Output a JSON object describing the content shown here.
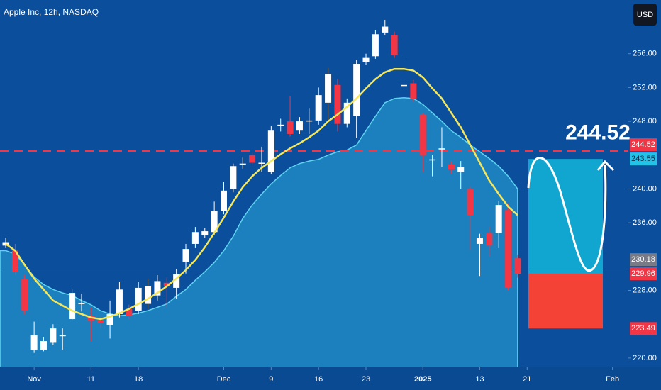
{
  "chart_data": {
    "type": "candlestick",
    "title": "Apple Inc, 12h, NASDAQ",
    "currency": "USD",
    "xlim": [
      -0.6,
      65.6
    ],
    "xticks": [
      {
        "value": 3,
        "label": "Nov"
      },
      {
        "value": 9,
        "label": "11"
      },
      {
        "value": 14,
        "label": "18"
      },
      {
        "value": 23,
        "label": "Dec"
      },
      {
        "value": 28,
        "label": "9"
      },
      {
        "value": 33,
        "label": "16"
      },
      {
        "value": 38,
        "label": "23"
      },
      {
        "value": 44,
        "label": "2025"
      },
      {
        "value": 50,
        "label": "13"
      },
      {
        "value": 55,
        "label": "21"
      },
      {
        "value": 64,
        "label": "Feb"
      }
    ],
    "ylim": [
      218.9,
      262.35
    ],
    "yticks": [
      {
        "value": 220,
        "label": "220.00"
      },
      {
        "value": 228,
        "label": "228.00"
      },
      {
        "value": 236,
        "label": "236.00"
      },
      {
        "value": 240,
        "label": "240.00"
      },
      {
        "value": 248,
        "label": "248.00"
      },
      {
        "value": 252,
        "label": "252.00"
      },
      {
        "value": 256,
        "label": "256.00"
      }
    ],
    "up_color": "#ffffff",
    "down_color": "#f23645",
    "open": [
      233.3,
      232.7,
      229.3,
      221,
      221,
      221.8,
      222.7,
      224.6,
      226.5,
      225,
      224.5,
      223.9,
      225.2,
      225.8,
      225.6,
      226.4,
      227.4,
      228.9,
      228.3,
      231.4,
      233.5,
      234.5,
      234.9,
      237.4,
      240,
      243,
      244,
      243.1,
      242,
      247.6,
      248,
      246.9,
      248.1,
      248.1,
      250.2,
      252.3,
      247.7,
      248.6,
      255,
      255.7,
      258.5,
      258.2,
      252.3,
      252.5,
      248.8,
      243.5,
      244.8,
      242.9,
      242,
      240,
      233.5,
      234.8,
      234.8,
      237.5,
      231.8
    ],
    "high": [
      234.2,
      233.5,
      229.8,
      224.3,
      222.5,
      224,
      223.5,
      228.2,
      227.6,
      226,
      224.9,
      226.8,
      229,
      226.3,
      229,
      229.4,
      229.8,
      229.5,
      230.5,
      233.5,
      235.5,
      235.4,
      238.5,
      240.8,
      243,
      243.7,
      244.4,
      245,
      247.5,
      248.3,
      251,
      248.5,
      249.5,
      252,
      254.3,
      253,
      250.7,
      255.3,
      256,
      258.8,
      260,
      258.6,
      255,
      252.9,
      249,
      244,
      247.3,
      243.3,
      243.3,
      240.3,
      234.7,
      235.5,
      238.6,
      238.3,
      232.2
    ],
    "low": [
      233,
      229.8,
      225.2,
      220.6,
      220.8,
      221.5,
      221,
      224.5,
      225.5,
      222,
      223.6,
      222.3,
      224.8,
      224.6,
      225.2,
      225.8,
      226.8,
      226,
      227,
      230,
      233,
      234.2,
      234.5,
      237,
      239.6,
      242.4,
      242.8,
      242,
      241.8,
      246.8,
      246.2,
      246.5,
      246.5,
      247.6,
      248,
      246.8,
      247.3,
      246,
      254.7,
      255.4,
      258.2,
      255.5,
      250.5,
      250.3,
      242,
      241.5,
      242.6,
      241.8,
      240,
      232.8,
      229.7,
      232,
      233,
      228,
      229.5
    ],
    "close": [
      233.7,
      230.2,
      225.6,
      222.7,
      222,
      223.5,
      222.7,
      227.7,
      226.5,
      224.4,
      224.1,
      225.2,
      228.1,
      225,
      228.3,
      228.5,
      229.1,
      228.5,
      229.9,
      232.9,
      234.9,
      235,
      237.4,
      239.8,
      242.7,
      243,
      243.1,
      243.1,
      246.9,
      247.6,
      246.5,
      248,
      248.1,
      251.1,
      253.6,
      247.7,
      250.2,
      254.8,
      255.5,
      258.3,
      259.2,
      255.8,
      252.3,
      250.7,
      244,
      243.5,
      244.8,
      242.3,
      242.6,
      236.9,
      234.2,
      233.3,
      238.1,
      228.3,
      229.96
    ],
    "overlays": [
      {
        "type": "area",
        "color": "#29a9d8",
        "values": [
          232.7,
          232.3,
          231,
          229.6,
          228.7,
          228.1,
          227.7,
          227.4,
          226.8,
          226.3,
          225.6,
          225.2,
          225,
          225.1,
          225.3,
          225.6,
          226,
          226.4,
          227.3,
          228.1,
          229.2,
          230.2,
          231.3,
          232.7,
          234.4,
          236.5,
          238.1,
          239.4,
          240.6,
          241.6,
          242.5,
          243,
          243.3,
          243.5,
          244,
          244.4,
          244.6,
          245.2,
          246.9,
          248.6,
          250.2,
          250.7,
          250.8,
          250.7,
          250,
          249,
          248,
          246.9,
          246.1,
          245.2,
          244.4,
          243.6,
          242.7,
          241.5,
          240
        ]
      },
      {
        "type": "line",
        "color": "#f5e65a",
        "values": [
          233.5,
          232.7,
          231,
          229.4,
          228.1,
          226.8,
          226.2,
          225.6,
          225.2,
          224.8,
          224.6,
          224.9,
          225.3,
          225.8,
          226.4,
          227,
          227.7,
          228.5,
          229.4,
          230.4,
          231.6,
          233.1,
          234.8,
          236.6,
          238.5,
          240.2,
          241.5,
          242.5,
          243.3,
          244.1,
          244.8,
          245.4,
          246.1,
          246.9,
          248,
          248.8,
          249.7,
          250.7,
          251.9,
          253,
          253.8,
          254.2,
          254.2,
          254,
          253.2,
          251.9,
          250.7,
          249,
          247.3,
          245.2,
          243.1,
          241,
          239.4,
          237.9,
          236.9
        ]
      }
    ],
    "levels": [
      {
        "value": 244.52,
        "color": "#f23645",
        "style": "dashed"
      },
      {
        "value": 230.18,
        "color": "#8fa3b8",
        "style": "solid"
      }
    ],
    "price_labels": [
      {
        "value": 244.52,
        "color": "#f23645",
        "text_color": "#ffffff"
      },
      {
        "value": 243.55,
        "color": "#22c3e6",
        "text_color": "#0a2a4a"
      },
      {
        "value": 230.18,
        "color": "#787b86",
        "text_color": "#ffffff"
      },
      {
        "value": 229.96,
        "color": "#f23645",
        "text_color": "#ffffff"
      },
      {
        "value": 223.49,
        "color": "#f23645",
        "text_color": "#ffffff"
      }
    ],
    "target": 244.52,
    "projection": {
      "top": 243.55,
      "entry": 229.96,
      "stop": 223.49,
      "profit_color": "#12b5d8",
      "loss_color": "#f44336"
    }
  }
}
